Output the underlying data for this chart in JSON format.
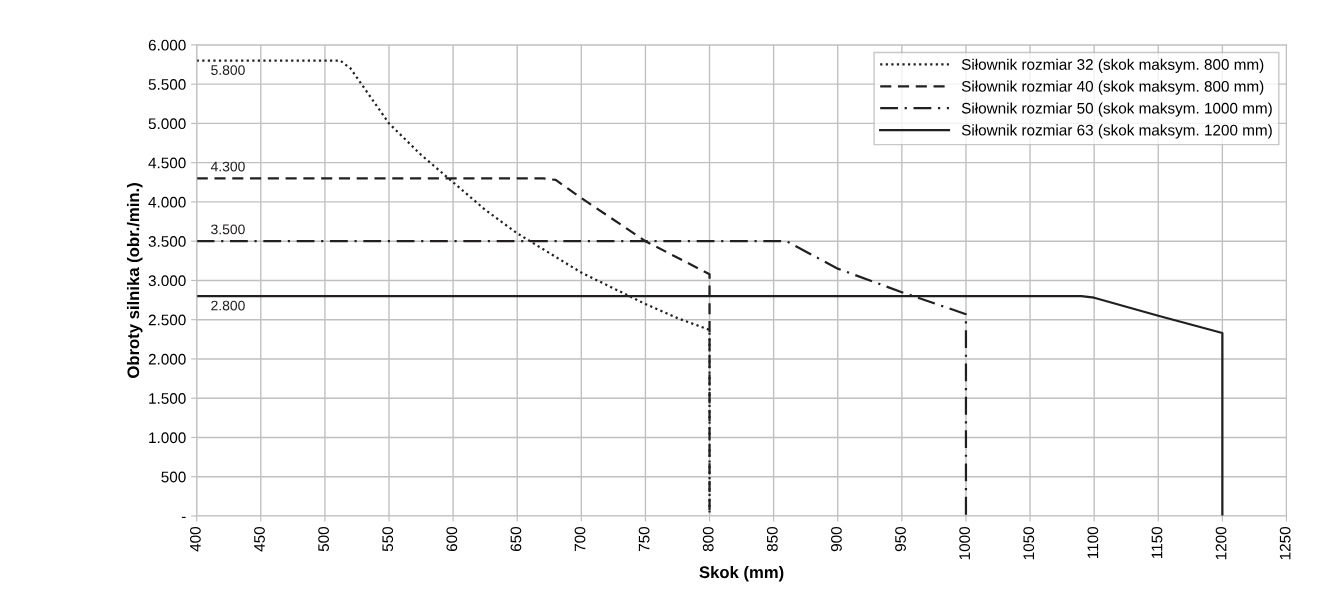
{
  "chart_data": {
    "type": "line",
    "xlabel": "Skok (mm)",
    "ylabel": "Obroty silnika (obr./min.)",
    "xlim": [
      400,
      1250
    ],
    "xticks": [
      400,
      450,
      500,
      550,
      600,
      650,
      700,
      750,
      800,
      850,
      900,
      950,
      1000,
      1050,
      1100,
      1150,
      1200,
      1250
    ],
    "ylim": [
      0,
      6000
    ],
    "yticks": [
      {
        "value": 0,
        "label": "-"
      },
      {
        "value": 500,
        "label": "500"
      },
      {
        "value": 1000,
        "label": "1.000"
      },
      {
        "value": 1500,
        "label": "1.500"
      },
      {
        "value": 2000,
        "label": "2.000"
      },
      {
        "value": 2500,
        "label": "2.500"
      },
      {
        "value": 3000,
        "label": "3.000"
      },
      {
        "value": 3500,
        "label": "3.500"
      },
      {
        "value": 4000,
        "label": "4.000"
      },
      {
        "value": 4500,
        "label": "4.500"
      },
      {
        "value": 5000,
        "label": "5.000"
      },
      {
        "value": 5500,
        "label": "5.500"
      },
      {
        "value": 6000,
        "label": "6.000"
      }
    ],
    "grid": true,
    "legend": "top right",
    "marker": "none",
    "series": [
      {
        "name": "Siłownik rozmiar 32 (skok maksym. 800 mm)",
        "color": "#231f20",
        "line_style": "dotted",
        "x": [
          400,
          512,
          520,
          550,
          575,
          600,
          625,
          650,
          675,
          700,
          725,
          750,
          775,
          800,
          800
        ],
        "values": [
          5800,
          5800,
          5700,
          5000,
          4600,
          4250,
          3900,
          3600,
          3350,
          3100,
          2900,
          2700,
          2520,
          2370,
          0
        ],
        "value_labels": [
          "5.800",
          null,
          null,
          null,
          null,
          null,
          null,
          null,
          null,
          null,
          null,
          null,
          null,
          null,
          null
        ]
      },
      {
        "name": "Siłownik rozmiar 40 (skok maksym. 800 mm)",
        "color": "#231f20",
        "line_style": "dashed",
        "x": [
          400,
          670,
          680,
          700,
          750,
          800,
          800
        ],
        "values": [
          4300,
          4300,
          4280,
          4050,
          3500,
          3080,
          0
        ],
        "value_labels": [
          "4.300",
          null,
          null,
          null,
          null,
          null,
          null
        ]
      },
      {
        "name": "Siłownik rozmiar 50 (skok maksym. 1000 mm)",
        "color": "#231f20",
        "line_style": "dashdot",
        "x": [
          400,
          860,
          900,
          950,
          1000,
          1000
        ],
        "values": [
          3500,
          3500,
          3150,
          2850,
          2570,
          0
        ],
        "value_labels": [
          "3.500",
          null,
          null,
          null,
          null,
          null
        ]
      },
      {
        "name": "Siłownik rozmiar 63 (skok maksym. 1200 mm)",
        "color": "#231f20",
        "line_style": "solid",
        "x": [
          400,
          1090,
          1100,
          1150,
          1200,
          1200
        ],
        "values": [
          2800,
          2800,
          2780,
          2550,
          2330,
          0
        ],
        "value_labels": [
          "2.800",
          null,
          null,
          null,
          null,
          null
        ]
      }
    ]
  }
}
